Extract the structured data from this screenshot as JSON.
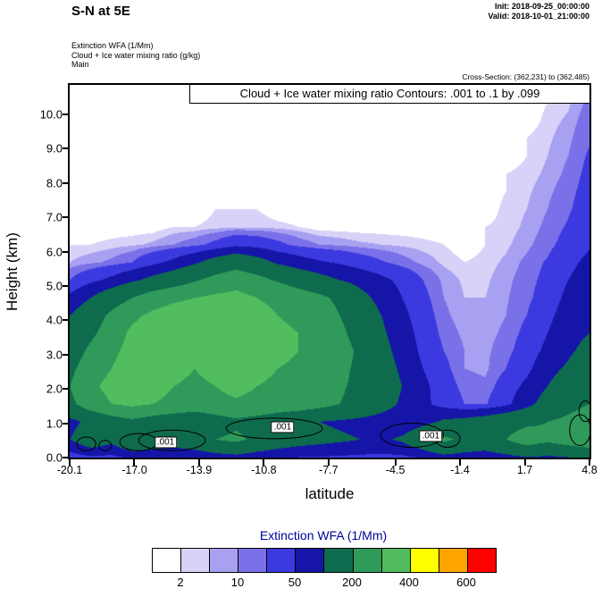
{
  "header": {
    "title": "S-N at 5E",
    "init": "Init: 2018-09-25_00:00:00",
    "valid": "Valid: 2018-10-01_21:00:00",
    "field1": "Extinction WFA  (1/Mm)",
    "field2": "Cloud + Ice water mixing ratio   (g/kg)",
    "field3": "Main",
    "cross_section": "Cross-Section: (362,231) to (362,485)"
  },
  "plot": {
    "contour_note": "Cloud + Ice water mixing ratio Contours: .001 to .1 by .099",
    "ylabel": "Height (km)",
    "xlabel": "latitude",
    "yticks": [
      "0.0",
      "1.0",
      "2.0",
      "3.0",
      "4.0",
      "5.0",
      "6.0",
      "7.0",
      "8.0",
      "9.0",
      "10.0"
    ],
    "xticks": [
      "-20.1",
      "-17.0",
      "-13.9",
      "-10.8",
      "-7.7",
      "-4.5",
      "-1.4",
      "1.7",
      "4.8"
    ]
  },
  "colorbar": {
    "title": "Extinction WFA  (1/Mm)",
    "title_color": "#00009b",
    "tick_labels": [
      "2",
      "10",
      "50",
      "200",
      "400",
      "600"
    ]
  },
  "chart_data": {
    "type": "contour",
    "title": "Cloud + Ice water mixing ratio Contours: .001 to .1 by .099",
    "xlabel": "latitude",
    "ylabel": "Height (km)",
    "units": "1/Mm",
    "x_range": [
      -20.1,
      4.8
    ],
    "y_range": [
      0,
      10.86
    ],
    "levels": [
      2,
      5,
      10,
      20,
      50,
      100,
      200,
      300,
      400,
      500,
      600
    ],
    "palette": [
      "#ffffff",
      "#d8d2f8",
      "#a8a0f0",
      "#7a70e8",
      "#3a3ae0",
      "#1515a8",
      "#0e6b4e",
      "#2f9a5a",
      "#52bd5e",
      "#ffff00",
      "#ffa500",
      "#ff0000"
    ],
    "colorbar_labels": [
      "2",
      "10",
      "50",
      "200",
      "400",
      "600"
    ],
    "grid_note": "approx extinction (1/Mm); rows from top (10.86 km) to bottom (0 km); cols lat -20.1 to 4.8",
    "grid": [
      [
        0,
        0,
        0,
        0,
        0,
        0,
        0,
        0,
        0,
        0,
        0,
        0,
        0,
        0,
        0,
        0,
        0,
        0,
        0,
        0,
        0,
        0,
        0,
        0,
        2,
        6
      ],
      [
        0,
        0,
        0,
        0,
        0,
        0,
        0,
        0,
        0,
        0,
        0,
        0,
        0,
        0,
        0,
        0,
        0,
        0,
        0,
        0,
        0,
        0,
        0,
        2,
        4,
        12
      ],
      [
        0,
        0,
        0,
        0,
        0,
        0,
        0,
        0,
        0,
        0,
        0,
        0,
        0,
        0,
        0,
        0,
        0,
        0,
        0,
        0,
        0,
        0,
        0,
        3,
        6,
        15
      ],
      [
        0,
        0,
        0,
        0,
        0,
        0,
        0,
        0,
        0,
        0,
        0,
        0,
        0,
        0,
        0,
        0,
        0,
        0,
        0,
        0,
        0,
        0,
        2,
        4,
        8,
        18
      ],
      [
        0,
        0,
        0,
        0,
        0,
        0,
        0,
        0,
        0,
        0,
        0,
        0,
        0,
        0,
        0,
        0,
        0,
        0,
        0,
        0,
        0,
        0,
        2,
        5,
        10,
        22
      ],
      [
        0,
        0,
        0,
        0,
        0,
        0,
        0,
        0,
        0,
        0,
        0,
        0,
        0,
        0,
        0,
        0,
        0,
        0,
        0,
        0,
        0,
        2,
        3,
        6,
        12,
        25
      ],
      [
        0,
        0,
        0,
        0,
        0,
        0,
        0,
        0,
        0,
        0,
        0,
        0,
        0,
        0,
        0,
        0,
        0,
        0,
        0,
        0,
        0,
        2,
        4,
        8,
        15,
        28
      ],
      [
        0,
        0,
        0,
        0,
        0,
        0,
        0,
        2,
        2,
        2,
        0,
        0,
        0,
        0,
        0,
        0,
        0,
        0,
        0,
        0,
        0,
        3,
        5,
        10,
        18,
        30
      ],
      [
        0,
        0,
        0,
        0,
        0,
        2,
        2,
        3,
        4,
        4,
        3,
        2,
        0,
        0,
        0,
        0,
        0,
        0,
        0,
        0,
        2,
        3,
        6,
        12,
        22,
        35
      ],
      [
        2,
        2,
        3,
        4,
        6,
        10,
        15,
        25,
        40,
        35,
        25,
        15,
        10,
        8,
        6,
        5,
        4,
        3,
        2,
        0,
        2,
        4,
        8,
        15,
        28,
        45
      ],
      [
        5,
        8,
        12,
        20,
        40,
        60,
        90,
        130,
        160,
        130,
        90,
        70,
        55,
        45,
        32,
        22,
        14,
        8,
        4,
        2,
        3,
        6,
        12,
        22,
        40,
        60
      ],
      [
        20,
        40,
        60,
        90,
        120,
        150,
        190,
        230,
        260,
        230,
        190,
        155,
        125,
        100,
        80,
        60,
        40,
        20,
        8,
        4,
        4,
        8,
        14,
        26,
        50,
        70
      ],
      [
        60,
        100,
        150,
        200,
        250,
        280,
        300,
        320,
        330,
        300,
        280,
        250,
        220,
        180,
        120,
        80,
        50,
        25,
        10,
        5,
        5,
        9,
        16,
        30,
        60,
        80
      ],
      [
        100,
        150,
        220,
        280,
        320,
        350,
        350,
        350,
        350,
        330,
        300,
        280,
        250,
        200,
        150,
        100,
        60,
        30,
        12,
        6,
        6,
        10,
        20,
        40,
        70,
        90
      ],
      [
        120,
        180,
        250,
        320,
        350,
        350,
        350,
        350,
        350,
        350,
        320,
        300,
        280,
        220,
        160,
        110,
        70,
        35,
        15,
        8,
        7,
        12,
        25,
        50,
        80,
        100
      ],
      [
        150,
        220,
        280,
        330,
        350,
        350,
        330,
        350,
        350,
        350,
        330,
        300,
        280,
        240,
        180,
        120,
        80,
        40,
        20,
        10,
        8,
        15,
        30,
        60,
        90,
        120
      ],
      [
        180,
        250,
        300,
        350,
        350,
        330,
        300,
        330,
        350,
        330,
        300,
        280,
        250,
        220,
        180,
        130,
        90,
        50,
        25,
        10,
        8,
        20,
        40,
        80,
        110,
        150
      ],
      [
        200,
        280,
        330,
        350,
        330,
        300,
        280,
        300,
        320,
        300,
        280,
        260,
        240,
        210,
        180,
        140,
        100,
        60,
        30,
        15,
        12,
        30,
        60,
        100,
        140,
        180
      ],
      [
        180,
        250,
        300,
        320,
        300,
        280,
        260,
        280,
        290,
        280,
        260,
        250,
        230,
        200,
        170,
        130,
        90,
        60,
        35,
        20,
        18,
        40,
        80,
        130,
        170,
        200
      ],
      [
        80,
        120,
        150,
        180,
        150,
        130,
        120,
        150,
        180,
        160,
        140,
        120,
        100,
        90,
        80,
        70,
        60,
        80,
        110,
        120,
        140,
        160,
        180,
        200,
        220,
        250
      ],
      [
        100,
        150,
        120,
        180,
        160,
        140,
        160,
        200,
        220,
        180,
        150,
        130,
        120,
        110,
        100,
        90,
        110,
        160,
        220,
        180,
        160,
        200,
        250,
        220,
        250,
        280
      ],
      [
        30,
        45,
        40,
        60,
        55,
        50,
        55,
        70,
        80,
        65,
        55,
        50,
        48,
        45,
        42,
        40,
        42,
        55,
        80,
        70,
        65,
        80,
        100,
        90,
        100,
        110
      ]
    ],
    "contour_labels": [
      {
        "text": ".001",
        "lat": -15.5,
        "h": 0.45
      },
      {
        "text": ".001",
        "lat": -9.9,
        "h": 0.88
      },
      {
        "text": ".001",
        "lat": -2.8,
        "h": 0.62
      }
    ],
    "contour_loops": [
      {
        "lat": -19.3,
        "h": 0.4,
        "rx": 0.45,
        "ry": 0.2
      },
      {
        "lat": -18.4,
        "h": 0.35,
        "rx": 0.3,
        "ry": 0.15
      },
      {
        "lat": -16.8,
        "h": 0.45,
        "rx": 0.9,
        "ry": 0.25
      },
      {
        "lat": -15.2,
        "h": 0.5,
        "rx": 1.6,
        "ry": 0.3
      },
      {
        "lat": -10.3,
        "h": 0.85,
        "rx": 2.3,
        "ry": 0.3
      },
      {
        "lat": -3.7,
        "h": 0.65,
        "rx": 1.5,
        "ry": 0.35
      },
      {
        "lat": -2.0,
        "h": 0.55,
        "rx": 0.6,
        "ry": 0.25
      },
      {
        "lat": 4.35,
        "h": 0.8,
        "rx": 0.5,
        "ry": 0.45
      },
      {
        "lat": 4.6,
        "h": 1.35,
        "rx": 0.3,
        "ry": 0.3
      }
    ]
  }
}
